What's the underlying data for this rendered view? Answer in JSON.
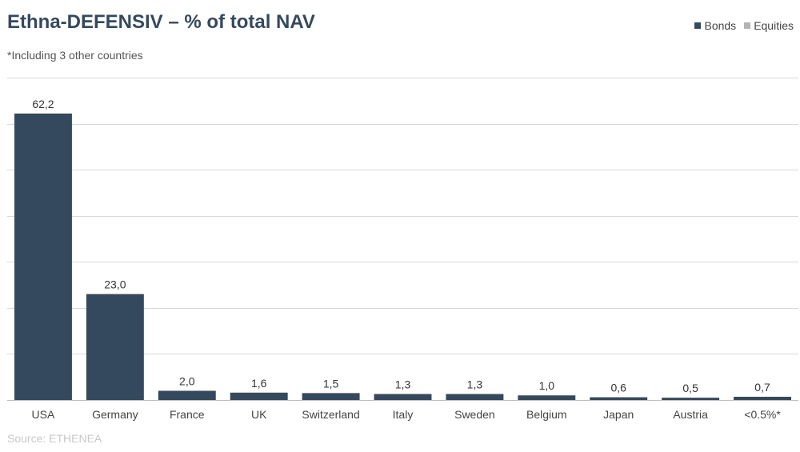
{
  "header": {
    "title": "Ethna-DEFENSIV – % of total NAV",
    "subtitle": "*Including 3 other countries"
  },
  "legend": {
    "items": [
      {
        "label": "Bonds",
        "color": "#34495e"
      },
      {
        "label": "Equities",
        "color": "#b4b4b4"
      }
    ]
  },
  "footer": {
    "source": "Source: ETHENEA"
  },
  "chart_data": {
    "type": "bar",
    "categories": [
      "USA",
      "Germany",
      "France",
      "UK",
      "Switzerland",
      "Italy",
      "Sweden",
      "Belgium",
      "Japan",
      "Austria",
      "<0.5%*"
    ],
    "series": [
      {
        "name": "Bonds",
        "values": [
          62.2,
          23.0,
          2.0,
          1.6,
          1.5,
          1.3,
          1.3,
          1.0,
          0.6,
          0.5,
          0.7
        ],
        "color": "#34495e"
      },
      {
        "name": "Equities",
        "values": [
          0,
          0,
          0,
          0,
          0,
          0,
          0,
          0,
          0,
          0,
          0
        ],
        "color": "#b4b4b4"
      }
    ],
    "data_labels": [
      "62,2",
      "23,0",
      "2,0",
      "1,6",
      "1,5",
      "1,3",
      "1,3",
      "1,0",
      "0,6",
      "0,5",
      "0,7"
    ],
    "ylim": [
      0,
      70
    ],
    "y_gridlines": [
      0,
      10,
      20,
      30,
      40,
      50,
      60,
      70
    ],
    "grid": true,
    "y_tick_labels_shown": false,
    "legend_position": "top-right"
  }
}
